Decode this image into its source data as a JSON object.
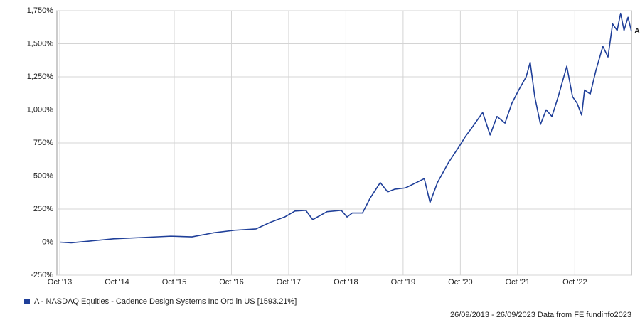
{
  "chart_data": {
    "type": "line",
    "x": [
      2013.75,
      2013.95,
      2014.32,
      2014.69,
      2015.19,
      2015.69,
      2016.06,
      2016.43,
      2016.81,
      2017.18,
      2017.43,
      2017.68,
      2017.86,
      2018.05,
      2018.17,
      2018.42,
      2018.67,
      2018.77,
      2018.86,
      2019.04,
      2019.17,
      2019.35,
      2019.48,
      2019.6,
      2019.79,
      2019.98,
      2020.12,
      2020.22,
      2020.35,
      2020.54,
      2020.74,
      2020.84,
      2020.96,
      2021.14,
      2021.27,
      2021.39,
      2021.53,
      2021.65,
      2021.77,
      2021.9,
      2021.97,
      2022.05,
      2022.15,
      2022.25,
      2022.35,
      2022.46,
      2022.61,
      2022.71,
      2022.79,
      2022.87,
      2022.92,
      2023.02,
      2023.12,
      2023.24,
      2023.33,
      2023.41,
      2023.49,
      2023.55,
      2023.61,
      2023.68,
      2023.74
    ],
    "series": [
      {
        "name": "A - NASDAQ Equities - Cadence Design Systems Inc Ord in US [1593.21%]",
        "end_label": "A",
        "color": "#1f3f99",
        "values": [
          0,
          -5,
          10,
          25,
          35,
          45,
          40,
          70,
          90,
          100,
          150,
          190,
          235,
          240,
          170,
          230,
          240,
          190,
          220,
          220,
          330,
          450,
          380,
          400,
          410,
          450,
          480,
          300,
          450,
          600,
          730,
          800,
          870,
          980,
          810,
          950,
          900,
          1050,
          1150,
          1250,
          1360,
          1100,
          890,
          1000,
          950,
          1100,
          1330,
          1100,
          1050,
          960,
          1150,
          1120,
          1300,
          1480,
          1400,
          1650,
          1600,
          1730,
          1600,
          1700,
          1593.21
        ]
      }
    ],
    "xlim": [
      2013.7,
      2023.74
    ],
    "xticks": [
      {
        "value": 2013.75,
        "label": "Oct '13"
      },
      {
        "value": 2014.75,
        "label": "Oct '14"
      },
      {
        "value": 2015.75,
        "label": "Oct '15"
      },
      {
        "value": 2016.75,
        "label": "Oct '16"
      },
      {
        "value": 2017.75,
        "label": "Oct '17"
      },
      {
        "value": 2018.75,
        "label": "Oct '18"
      },
      {
        "value": 2019.75,
        "label": "Oct '19"
      },
      {
        "value": 2020.75,
        "label": "Oct '20"
      },
      {
        "value": 2021.75,
        "label": "Oct '21"
      },
      {
        "value": 2022.75,
        "label": "Oct '22"
      }
    ],
    "ylim": [
      -250,
      1750
    ],
    "yticks": [
      {
        "value": -250,
        "label": "-250%"
      },
      {
        "value": 0,
        "label": "0%"
      },
      {
        "value": 250,
        "label": "250%"
      },
      {
        "value": 500,
        "label": "500%"
      },
      {
        "value": 750,
        "label": "750%"
      },
      {
        "value": 1000,
        "label": "1,000%"
      },
      {
        "value": 1250,
        "label": "1,250%"
      },
      {
        "value": 1500,
        "label": "1,500%"
      },
      {
        "value": 1750,
        "label": "1,750%"
      }
    ],
    "grid": true,
    "footer": "26/09/2013 - 26/09/2023 Data from FE fundinfo2023"
  }
}
